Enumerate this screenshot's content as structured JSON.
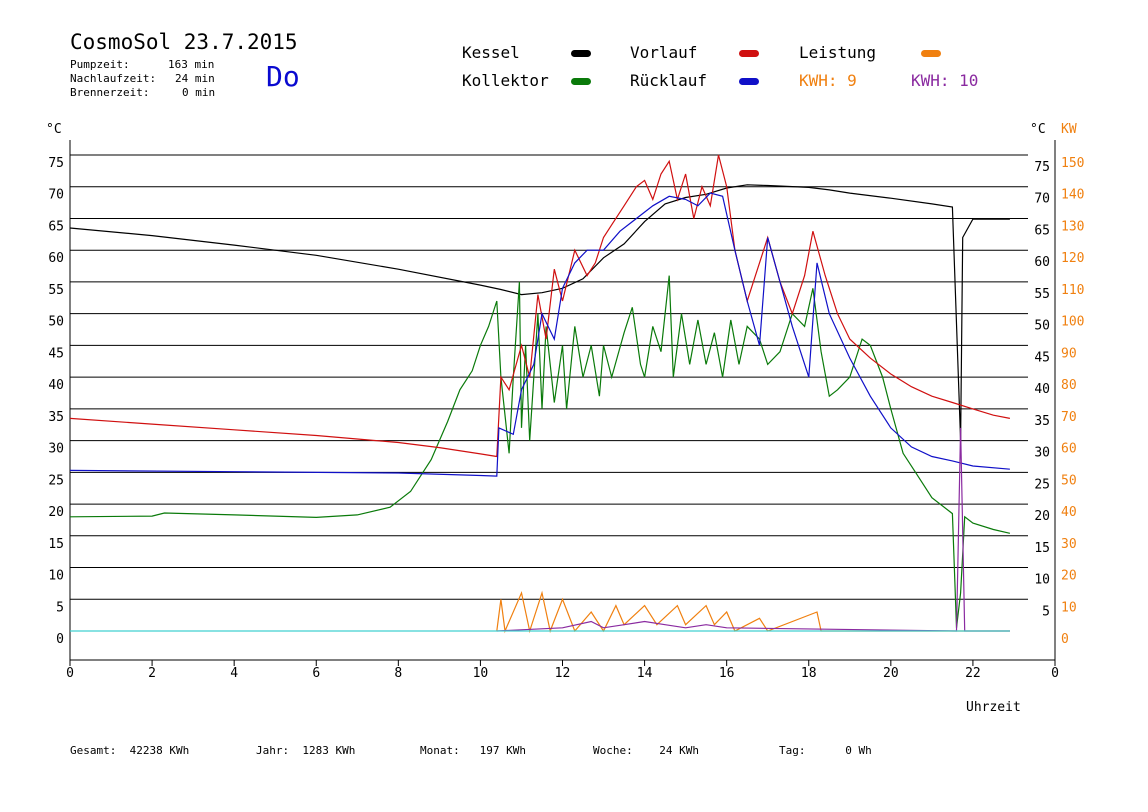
{
  "header": {
    "title": "CosmoSol 23.7.2015",
    "pumpzeit_label": "Pumpzeit:",
    "pumpzeit_value": "163 min",
    "nachlaufzeit_label": "Nachlaufzeit:",
    "nachlaufzeit_value": "24 min",
    "brennerzeit_label": "Brennerzeit:",
    "brennerzeit_value": "0 min",
    "day": "Do"
  },
  "legend": {
    "kessel": "Kessel",
    "kollektor": "Kollektor",
    "vorlauf": "Vorlauf",
    "ruecklauf": "Rücklauf",
    "leistung": "Leistung",
    "kwh1": "KWH: 9",
    "kwh2": "KWH: 10"
  },
  "colors": {
    "kessel": "#000000",
    "kollektor": "#0a7a0a",
    "vorlauf": "#d01010",
    "ruecklauf": "#1010c8",
    "leistung": "#f08010",
    "kwh2": "#8a2aa0",
    "baseline": "#40d0d0"
  },
  "axes": {
    "left_unit": "°C",
    "right_unit_c": "°C",
    "right_unit_kw": "KW",
    "xlabel": "Uhrzeit",
    "x_ticks": [
      "0",
      "2",
      "4",
      "6",
      "8",
      "10",
      "12",
      "14",
      "16",
      "18",
      "20",
      "22",
      "0"
    ],
    "y_ticks": [
      "0",
      "5",
      "10",
      "15",
      "20",
      "25",
      "30",
      "35",
      "40",
      "45",
      "50",
      "55",
      "60",
      "65",
      "70",
      "75"
    ],
    "right_c_ticks": [
      "5",
      "10",
      "15",
      "20",
      "25",
      "30",
      "35",
      "40",
      "45",
      "50",
      "55",
      "60",
      "65",
      "70",
      "75"
    ],
    "right_kw_ticks": [
      "0",
      "10",
      "20",
      "30",
      "40",
      "50",
      "60",
      "70",
      "80",
      "90",
      "100",
      "110",
      "120",
      "130",
      "140",
      "150"
    ]
  },
  "footer": {
    "gesamt": "Gesamt:  42238 KWh",
    "jahr": "Jahr:  1283 KWh",
    "monat": "Monat:   197 KWh",
    "woche": "Woche:    24 KWh",
    "tag": "Tag:      0 Wh"
  },
  "chart_data": {
    "type": "line",
    "xlabel": "Uhrzeit",
    "ylabel": "°C",
    "xlim": [
      0,
      24
    ],
    "ylim": [
      -4.5,
      79
    ],
    "grid": true,
    "series": [
      {
        "name": "Kessel",
        "color": "#000000",
        "points": [
          [
            0,
            63.5
          ],
          [
            2,
            62.3
          ],
          [
            4,
            60.8
          ],
          [
            6,
            59.2
          ],
          [
            8,
            57.0
          ],
          [
            10,
            54.5
          ],
          [
            10.5,
            53.8
          ],
          [
            11,
            53.0
          ],
          [
            11.5,
            53.3
          ],
          [
            12,
            54.0
          ],
          [
            12.5,
            55.5
          ],
          [
            13,
            58.8
          ],
          [
            13.5,
            61.0
          ],
          [
            14,
            64.5
          ],
          [
            14.5,
            67.3
          ],
          [
            15,
            68.3
          ],
          [
            15.5,
            68.8
          ],
          [
            16,
            69.8
          ],
          [
            16.5,
            70.3
          ],
          [
            17,
            70.2
          ],
          [
            18,
            69.9
          ],
          [
            18.5,
            69.5
          ],
          [
            19,
            69.0
          ],
          [
            20,
            68.2
          ],
          [
            21,
            67.3
          ],
          [
            21.5,
            66.8
          ],
          [
            21.7,
            30.0
          ],
          [
            21.75,
            62.0
          ],
          [
            22,
            64.9
          ],
          [
            22.9,
            64.9
          ]
        ]
      },
      {
        "name": "Kollektor",
        "color": "#0a7a0a",
        "points": [
          [
            0,
            18.0
          ],
          [
            2,
            18.1
          ],
          [
            2.3,
            18.6
          ],
          [
            4,
            18.3
          ],
          [
            6,
            17.9
          ],
          [
            7,
            18.3
          ],
          [
            7.8,
            19.5
          ],
          [
            8.3,
            22.0
          ],
          [
            8.8,
            27.0
          ],
          [
            9.2,
            33.0
          ],
          [
            9.5,
            38.0
          ],
          [
            9.8,
            41.0
          ],
          [
            10,
            45.0
          ],
          [
            10.2,
            48.0
          ],
          [
            10.4,
            52.0
          ],
          [
            10.5,
            40.0
          ],
          [
            10.7,
            28.0
          ],
          [
            10.8,
            40.0
          ],
          [
            10.95,
            55.0
          ],
          [
            11,
            32.0
          ],
          [
            11.1,
            45.0
          ],
          [
            11.2,
            30.0
          ],
          [
            11.4,
            50.0
          ],
          [
            11.5,
            35.0
          ],
          [
            11.6,
            48.0
          ],
          [
            11.8,
            36.0
          ],
          [
            12,
            45.0
          ],
          [
            12.1,
            35.0
          ],
          [
            12.3,
            48.0
          ],
          [
            12.5,
            40.0
          ],
          [
            12.7,
            45.0
          ],
          [
            12.9,
            37.0
          ],
          [
            13,
            45.0
          ],
          [
            13.2,
            40.0
          ],
          [
            13.5,
            47.0
          ],
          [
            13.7,
            51.0
          ],
          [
            13.9,
            42.0
          ],
          [
            14,
            40.0
          ],
          [
            14.2,
            48.0
          ],
          [
            14.4,
            44.0
          ],
          [
            14.6,
            56.0
          ],
          [
            14.7,
            40.0
          ],
          [
            14.9,
            50.0
          ],
          [
            15.1,
            42.0
          ],
          [
            15.3,
            49.0
          ],
          [
            15.5,
            42.0
          ],
          [
            15.7,
            47.0
          ],
          [
            15.9,
            40.0
          ],
          [
            16.1,
            49.0
          ],
          [
            16.3,
            42.0
          ],
          [
            16.5,
            48.0
          ],
          [
            16.8,
            46.0
          ],
          [
            17,
            42.0
          ],
          [
            17.3,
            44.0
          ],
          [
            17.6,
            50.0
          ],
          [
            17.9,
            48.0
          ],
          [
            18.1,
            54.0
          ],
          [
            18.3,
            44.0
          ],
          [
            18.5,
            37.0
          ],
          [
            18.7,
            38.0
          ],
          [
            19,
            40.0
          ],
          [
            19.3,
            46.0
          ],
          [
            19.5,
            45.0
          ],
          [
            19.8,
            40.0
          ],
          [
            20,
            35.0
          ],
          [
            20.3,
            28.0
          ],
          [
            20.6,
            25.0
          ],
          [
            21,
            21.0
          ],
          [
            21.5,
            18.5
          ],
          [
            21.6,
            0.5
          ],
          [
            21.7,
            6.0
          ],
          [
            21.8,
            18.0
          ],
          [
            22,
            17.0
          ],
          [
            22.5,
            16.0
          ],
          [
            22.9,
            15.4
          ]
        ]
      },
      {
        "name": "Vorlauf",
        "color": "#d01010",
        "points": [
          [
            0,
            33.5
          ],
          [
            2,
            32.6
          ],
          [
            4,
            31.7
          ],
          [
            6,
            30.8
          ],
          [
            8,
            29.7
          ],
          [
            9,
            28.9
          ],
          [
            10,
            27.9
          ],
          [
            10.4,
            27.5
          ],
          [
            10.5,
            40.0
          ],
          [
            10.7,
            38.0
          ],
          [
            11,
            45.0
          ],
          [
            11.2,
            40.0
          ],
          [
            11.4,
            53.0
          ],
          [
            11.6,
            46.0
          ],
          [
            11.8,
            57.0
          ],
          [
            12,
            52.0
          ],
          [
            12.3,
            60.0
          ],
          [
            12.6,
            56.0
          ],
          [
            12.8,
            58.0
          ],
          [
            13,
            62.0
          ],
          [
            13.2,
            64.0
          ],
          [
            13.5,
            67.0
          ],
          [
            13.8,
            70.0
          ],
          [
            14,
            71.0
          ],
          [
            14.2,
            68.0
          ],
          [
            14.4,
            72.0
          ],
          [
            14.6,
            74.0
          ],
          [
            14.8,
            68.0
          ],
          [
            15,
            72.0
          ],
          [
            15.2,
            65.0
          ],
          [
            15.4,
            70.0
          ],
          [
            15.6,
            67.0
          ],
          [
            15.8,
            75.0
          ],
          [
            16,
            70.0
          ],
          [
            16.2,
            60.0
          ],
          [
            16.5,
            52.0
          ],
          [
            16.8,
            58.0
          ],
          [
            17,
            62.0
          ],
          [
            17.3,
            55.0
          ],
          [
            17.6,
            50.0
          ],
          [
            17.9,
            56.0
          ],
          [
            18.1,
            63.0
          ],
          [
            18.4,
            56.0
          ],
          [
            18.7,
            50.0
          ],
          [
            19,
            46.0
          ],
          [
            19.5,
            43.0
          ],
          [
            20,
            40.5
          ],
          [
            20.5,
            38.5
          ],
          [
            21,
            37.0
          ],
          [
            21.5,
            36.0
          ],
          [
            22,
            35.0
          ],
          [
            22.5,
            34.0
          ],
          [
            22.9,
            33.5
          ]
        ]
      },
      {
        "name": "Rücklauf",
        "color": "#1010c8",
        "points": [
          [
            0,
            25.3
          ],
          [
            4,
            25.1
          ],
          [
            8,
            24.9
          ],
          [
            10,
            24.5
          ],
          [
            10.4,
            24.4
          ],
          [
            10.45,
            32.0
          ],
          [
            10.8,
            31.0
          ],
          [
            11,
            38.0
          ],
          [
            11.3,
            42.0
          ],
          [
            11.5,
            50.0
          ],
          [
            11.8,
            46.0
          ],
          [
            12,
            54.0
          ],
          [
            12.3,
            58.0
          ],
          [
            12.6,
            60.0
          ],
          [
            13,
            60.0
          ],
          [
            13.4,
            63.0
          ],
          [
            13.8,
            65.0
          ],
          [
            14.2,
            67.0
          ],
          [
            14.6,
            68.5
          ],
          [
            15,
            68.0
          ],
          [
            15.3,
            67.0
          ],
          [
            15.6,
            69.0
          ],
          [
            15.9,
            68.5
          ],
          [
            16.2,
            60.0
          ],
          [
            16.5,
            52.0
          ],
          [
            16.8,
            45.0
          ],
          [
            17,
            62.0
          ],
          [
            17.3,
            55.0
          ],
          [
            17.6,
            48.0
          ],
          [
            18,
            40.0
          ],
          [
            18.2,
            58.0
          ],
          [
            18.5,
            50.0
          ],
          [
            19,
            43.0
          ],
          [
            19.5,
            37.0
          ],
          [
            20,
            32.0
          ],
          [
            20.5,
            29.0
          ],
          [
            21,
            27.5
          ],
          [
            21.5,
            26.8
          ],
          [
            22,
            26.0
          ],
          [
            22.9,
            25.5
          ]
        ]
      },
      {
        "name": "Leistung",
        "color": "#f08010",
        "points": [
          [
            10.4,
            0
          ],
          [
            10.5,
            5
          ],
          [
            10.6,
            0
          ],
          [
            11,
            6
          ],
          [
            11.2,
            0
          ],
          [
            11.5,
            6
          ],
          [
            11.7,
            0
          ],
          [
            12,
            5
          ],
          [
            12.3,
            0
          ],
          [
            12.7,
            3
          ],
          [
            13,
            0
          ],
          [
            13.3,
            4
          ],
          [
            13.5,
            1
          ],
          [
            14,
            4
          ],
          [
            14.3,
            1
          ],
          [
            14.8,
            4
          ],
          [
            15,
            1
          ],
          [
            15.5,
            4
          ],
          [
            15.7,
            1
          ],
          [
            16,
            3
          ],
          [
            16.2,
            0
          ],
          [
            16.8,
            2
          ],
          [
            17,
            0
          ],
          [
            18.2,
            3
          ],
          [
            18.3,
            0
          ],
          [
            22.9,
            0
          ]
        ]
      },
      {
        "name": "KWH: 10",
        "color": "#8a2aa0",
        "points": [
          [
            10.4,
            0
          ],
          [
            12,
            0.5
          ],
          [
            12.7,
            1.5
          ],
          [
            13,
            0.5
          ],
          [
            13.5,
            1
          ],
          [
            14,
            1.5
          ],
          [
            14.5,
            1
          ],
          [
            15,
            0.5
          ],
          [
            15.5,
            1
          ],
          [
            16,
            0.5
          ],
          [
            21.6,
            0
          ],
          [
            21.7,
            32
          ],
          [
            21.8,
            0
          ],
          [
            22.9,
            0
          ]
        ]
      },
      {
        "name": "",
        "color": "#40d0d0",
        "points": [
          [
            0,
            0
          ],
          [
            22.9,
            0
          ]
        ]
      }
    ]
  }
}
